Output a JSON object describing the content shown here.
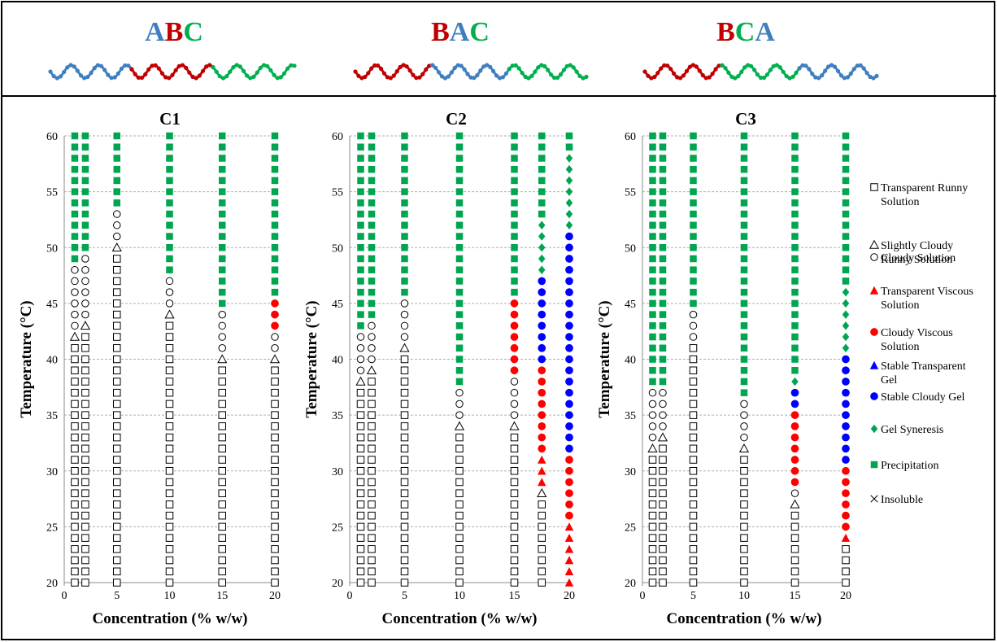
{
  "block_colors": {
    "A": "#3F7FC0",
    "B": "#C00000",
    "C": "#00B050"
  },
  "polymers": [
    {
      "letters": [
        "A",
        "B",
        "C"
      ],
      "segments": [
        "A",
        "B",
        "C"
      ]
    },
    {
      "letters": [
        "B",
        "A",
        "C"
      ],
      "segments": [
        "B",
        "A",
        "C"
      ]
    },
    {
      "letters": [
        "B",
        "C",
        "A"
      ],
      "segments": [
        "B",
        "C",
        "A"
      ]
    }
  ],
  "legend": [
    {
      "key": "trs",
      "lines": [
        "Transparent Runny",
        "Solution"
      ],
      "color": "#000000",
      "shape": "open-square"
    },
    {
      "key": "scr",
      "lines": [
        "Slightly Cloudy",
        "Runny Solution"
      ],
      "color": "#000000",
      "shape": "open-triangle"
    },
    {
      "key": "cs",
      "lines": [
        "Cloudy Solution"
      ],
      "color": "#000000",
      "shape": "open-circle"
    },
    {
      "key": "tvs",
      "lines": [
        "Transparent Viscous",
        "Solution"
      ],
      "color": "#FF0000",
      "shape": "filled-triangle"
    },
    {
      "key": "cvs",
      "lines": [
        "Cloudy Viscous",
        "Solution"
      ],
      "color": "#FF0000",
      "shape": "filled-circle"
    },
    {
      "key": "stg",
      "lines": [
        "Stable Transparent",
        "Gel"
      ],
      "color": "#0000FF",
      "shape": "filled-triangle"
    },
    {
      "key": "scg",
      "lines": [
        "Stable Cloudy Gel"
      ],
      "color": "#0000FF",
      "shape": "filled-circle"
    },
    {
      "key": "gs",
      "lines": [
        "Gel Syneresis"
      ],
      "color": "#00A550",
      "shape": "filled-diamond"
    },
    {
      "key": "p",
      "lines": [
        "Precipitation"
      ],
      "color": "#00A550",
      "shape": "filled-square"
    },
    {
      "key": "ins",
      "lines": [
        "Insoluble"
      ],
      "color": "#000000",
      "shape": "cross"
    }
  ],
  "chart_data": [
    {
      "type": "scatter",
      "title": "C1",
      "xlabel": "Concentration (% w/w)",
      "ylabel": "Temperature (°C)",
      "xlim": [
        0,
        20
      ],
      "ylim": [
        20,
        60
      ],
      "xticks": [
        0,
        5,
        10,
        15,
        20
      ],
      "yticks": [
        20,
        25,
        30,
        35,
        40,
        45,
        50,
        55,
        60
      ],
      "grid": "horizontal-dashed",
      "columns": [
        {
          "conc": 1,
          "runs": [
            [
              "trs",
              20,
              41
            ],
            [
              "scr",
              42,
              42
            ],
            [
              "cs",
              43,
              48
            ],
            [
              "p",
              49,
              60
            ]
          ]
        },
        {
          "conc": 2,
          "runs": [
            [
              "trs",
              20,
              42
            ],
            [
              "scr",
              43,
              43
            ],
            [
              "cs",
              44,
              49
            ],
            [
              "p",
              50,
              60
            ]
          ]
        },
        {
          "conc": 5,
          "runs": [
            [
              "trs",
              20,
              49
            ],
            [
              "scr",
              50,
              50
            ],
            [
              "cs",
              51,
              53
            ],
            [
              "p",
              54,
              60
            ]
          ]
        },
        {
          "conc": 10,
          "runs": [
            [
              "trs",
              20,
              43
            ],
            [
              "scr",
              44,
              44
            ],
            [
              "cs",
              45,
              47
            ],
            [
              "p",
              48,
              60
            ]
          ]
        },
        {
          "conc": 15,
          "runs": [
            [
              "trs",
              20,
              39
            ],
            [
              "scr",
              40,
              40
            ],
            [
              "cs",
              41,
              44
            ],
            [
              "p",
              45,
              60
            ]
          ]
        },
        {
          "conc": 20,
          "runs": [
            [
              "trs",
              20,
              39
            ],
            [
              "scr",
              40,
              40
            ],
            [
              "cs",
              41,
              42
            ],
            [
              "cvs",
              43,
              45
            ],
            [
              "p",
              46,
              60
            ]
          ]
        }
      ]
    },
    {
      "type": "scatter",
      "title": "C2",
      "xlabel": "Concentration (% w/w)",
      "ylabel": "Temperature (°C)",
      "xlim": [
        0,
        20
      ],
      "ylim": [
        20,
        60
      ],
      "xticks": [
        0,
        5,
        10,
        15,
        20
      ],
      "yticks": [
        20,
        25,
        30,
        35,
        40,
        45,
        50,
        55,
        60
      ],
      "grid": "horizontal-dashed",
      "columns": [
        {
          "conc": 1,
          "runs": [
            [
              "trs",
              20,
              37
            ],
            [
              "scr",
              38,
              38
            ],
            [
              "cs",
              39,
              42
            ],
            [
              "p",
              43,
              60
            ]
          ]
        },
        {
          "conc": 2,
          "runs": [
            [
              "trs",
              20,
              38
            ],
            [
              "scr",
              39,
              39
            ],
            [
              "cs",
              40,
              43
            ],
            [
              "p",
              44,
              60
            ]
          ]
        },
        {
          "conc": 5,
          "runs": [
            [
              "trs",
              20,
              40
            ],
            [
              "scr",
              41,
              41
            ],
            [
              "cs",
              42,
              45
            ],
            [
              "p",
              46,
              60
            ]
          ]
        },
        {
          "conc": 10,
          "runs": [
            [
              "trs",
              20,
              33
            ],
            [
              "scr",
              34,
              34
            ],
            [
              "cs",
              35,
              37
            ],
            [
              "p",
              38,
              60
            ]
          ]
        },
        {
          "conc": 15,
          "runs": [
            [
              "trs",
              20,
              33
            ],
            [
              "scr",
              34,
              34
            ],
            [
              "cs",
              35,
              38
            ],
            [
              "cvs",
              39,
              45
            ],
            [
              "p",
              46,
              60
            ]
          ]
        },
        {
          "conc": 17.5,
          "runs": [
            [
              "trs",
              20,
              27
            ],
            [
              "scr",
              28,
              28
            ],
            [
              "tvs",
              29,
              31
            ],
            [
              "cvs",
              32,
              39
            ],
            [
              "scg",
              40,
              47
            ],
            [
              "gs",
              48,
              52
            ],
            [
              "p",
              53,
              60
            ]
          ]
        },
        {
          "conc": 20,
          "runs": [
            [
              "tvs",
              20,
              25
            ],
            [
              "cvs",
              26,
              31
            ],
            [
              "scg",
              32,
              51
            ],
            [
              "gs",
              52,
              58
            ],
            [
              "p",
              59,
              60
            ]
          ]
        }
      ]
    },
    {
      "type": "scatter",
      "title": "C3",
      "xlabel": "Concentration (% w/w)",
      "ylabel": "Temperature (°C)",
      "xlim": [
        0,
        20
      ],
      "ylim": [
        20,
        60
      ],
      "xticks": [
        0,
        5,
        10,
        15,
        20
      ],
      "yticks": [
        20,
        25,
        30,
        35,
        40,
        45,
        50,
        55,
        60
      ],
      "grid": "horizontal-dashed",
      "columns": [
        {
          "conc": 1,
          "runs": [
            [
              "trs",
              20,
              31
            ],
            [
              "scr",
              32,
              32
            ],
            [
              "cs",
              33,
              37
            ],
            [
              "p",
              38,
              60
            ]
          ]
        },
        {
          "conc": 2,
          "runs": [
            [
              "trs",
              20,
              32
            ],
            [
              "scr",
              33,
              33
            ],
            [
              "cs",
              34,
              37
            ],
            [
              "p",
              38,
              60
            ]
          ]
        },
        {
          "conc": 5,
          "runs": [
            [
              "trs",
              20,
              41
            ],
            [
              "cs",
              42,
              44
            ],
            [
              "p",
              45,
              60
            ]
          ]
        },
        {
          "conc": 10,
          "runs": [
            [
              "trs",
              20,
              31
            ],
            [
              "scr",
              32,
              32
            ],
            [
              "cs",
              33,
              36
            ],
            [
              "p",
              37,
              60
            ]
          ]
        },
        {
          "conc": 15,
          "runs": [
            [
              "trs",
              20,
              26
            ],
            [
              "scr",
              27,
              27
            ],
            [
              "cs",
              28,
              28
            ],
            [
              "cvs",
              29,
              35
            ],
            [
              "scg",
              36,
              37
            ],
            [
              "gs",
              38,
              38
            ],
            [
              "p",
              39,
              60
            ]
          ]
        },
        {
          "conc": 20,
          "runs": [
            [
              "trs",
              20,
              23
            ],
            [
              "tvs",
              24,
              24
            ],
            [
              "cvs",
              25,
              30
            ],
            [
              "scg",
              31,
              40
            ],
            [
              "gs",
              41,
              46
            ],
            [
              "p",
              47,
              60
            ]
          ]
        }
      ]
    }
  ]
}
